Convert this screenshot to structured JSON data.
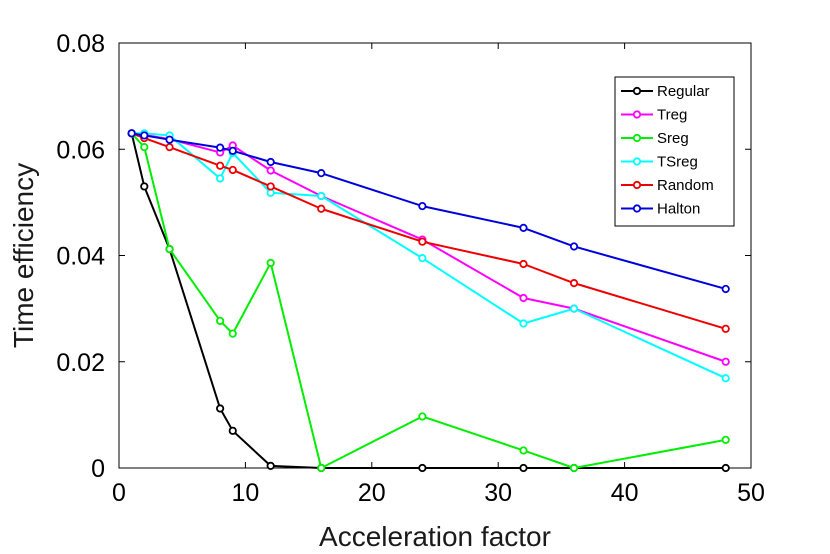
{
  "chart_data": {
    "type": "line",
    "title": "",
    "xlabel": "Acceleration factor",
    "ylabel": "Time efficiency",
    "xlim": [
      0,
      50
    ],
    "ylim": [
      0,
      0.08
    ],
    "xticks": [
      0,
      10,
      20,
      30,
      40,
      50
    ],
    "yticks": [
      0,
      0.02,
      0.04,
      0.06,
      0.08
    ],
    "xtick_labels": [
      "0",
      "10",
      "20",
      "30",
      "40",
      "50"
    ],
    "ytick_labels": [
      "0",
      "0.02",
      "0.04",
      "0.06",
      "0.08"
    ],
    "grid": false,
    "legend_position": "top-right",
    "series": [
      {
        "name": "Regular",
        "color": "#000000",
        "x": [
          1,
          2,
          4,
          8,
          9,
          12,
          16,
          24,
          32,
          36,
          48
        ],
        "y": [
          0.063,
          0.053,
          0.0412,
          0.0112,
          0.007,
          0.0004,
          0.0,
          0.0,
          0.0,
          0.0,
          0.0
        ]
      },
      {
        "name": "Treg",
        "color": "#ff00ff",
        "x": [
          1,
          2,
          4,
          8,
          9,
          12,
          16,
          24,
          32,
          36,
          48
        ],
        "y": [
          0.063,
          0.0627,
          0.0619,
          0.0594,
          0.0607,
          0.056,
          0.0512,
          0.043,
          0.032,
          0.03,
          0.02
        ]
      },
      {
        "name": "Sreg",
        "color": "#00ee00",
        "x": [
          1,
          2,
          4,
          8,
          9,
          12,
          16,
          24,
          32,
          36,
          48
        ],
        "y": [
          0.063,
          0.0604,
          0.0412,
          0.0277,
          0.0253,
          0.0386,
          0.0,
          0.0097,
          0.0033,
          0.0,
          0.0053
        ]
      },
      {
        "name": "TSreg",
        "color": "#00ffff",
        "x": [
          1,
          2,
          4,
          8,
          9,
          12,
          16,
          24,
          32,
          36,
          48
        ],
        "y": [
          0.063,
          0.063,
          0.0626,
          0.0545,
          0.0593,
          0.0518,
          0.0512,
          0.0395,
          0.0272,
          0.03,
          0.0169
        ]
      },
      {
        "name": "Random",
        "color": "#ee0000",
        "x": [
          1,
          2,
          4,
          8,
          9,
          12,
          16,
          24,
          32,
          36,
          48
        ],
        "y": [
          0.063,
          0.0621,
          0.0604,
          0.0569,
          0.0561,
          0.053,
          0.0488,
          0.0426,
          0.0384,
          0.0348,
          0.0262
        ]
      },
      {
        "name": "Halton",
        "color": "#0000dd",
        "x": [
          1,
          2,
          4,
          8,
          9,
          12,
          16,
          24,
          32,
          36,
          48
        ],
        "y": [
          0.063,
          0.0626,
          0.0618,
          0.0603,
          0.0597,
          0.0576,
          0.0555,
          0.0493,
          0.0452,
          0.0417,
          0.0337
        ]
      }
    ]
  }
}
